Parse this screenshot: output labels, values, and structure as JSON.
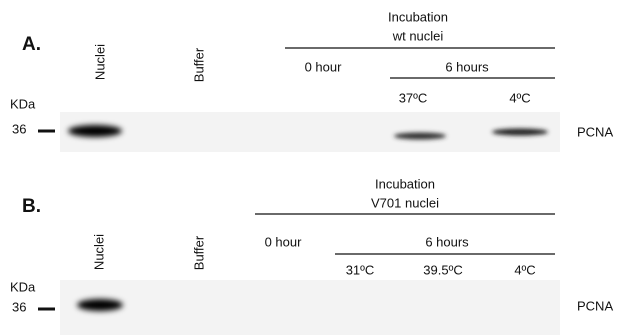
{
  "panels": [
    {
      "label": "A.",
      "lanes": [
        "Nuclei",
        "Buffer"
      ],
      "header": {
        "title": "Incubation",
        "subtitle": "wt nuclei",
        "groups": [
          "0 hour",
          "6 hours"
        ],
        "conditions": [
          "37ºC",
          "4ºC"
        ]
      },
      "marker": {
        "unit": "KDa",
        "size": "36"
      },
      "band_label": "PCNA"
    },
    {
      "label": "B.",
      "lanes": [
        "Nuclei",
        "Buffer"
      ],
      "header": {
        "title": "Incubation",
        "subtitle": "V701 nuclei",
        "groups": [
          "0 hour",
          "6 hours"
        ],
        "conditions": [
          "31ºC",
          "39.5ºC",
          "4ºC"
        ]
      },
      "marker": {
        "unit": "KDa",
        "size": "36"
      },
      "band_label": "PCNA"
    }
  ]
}
